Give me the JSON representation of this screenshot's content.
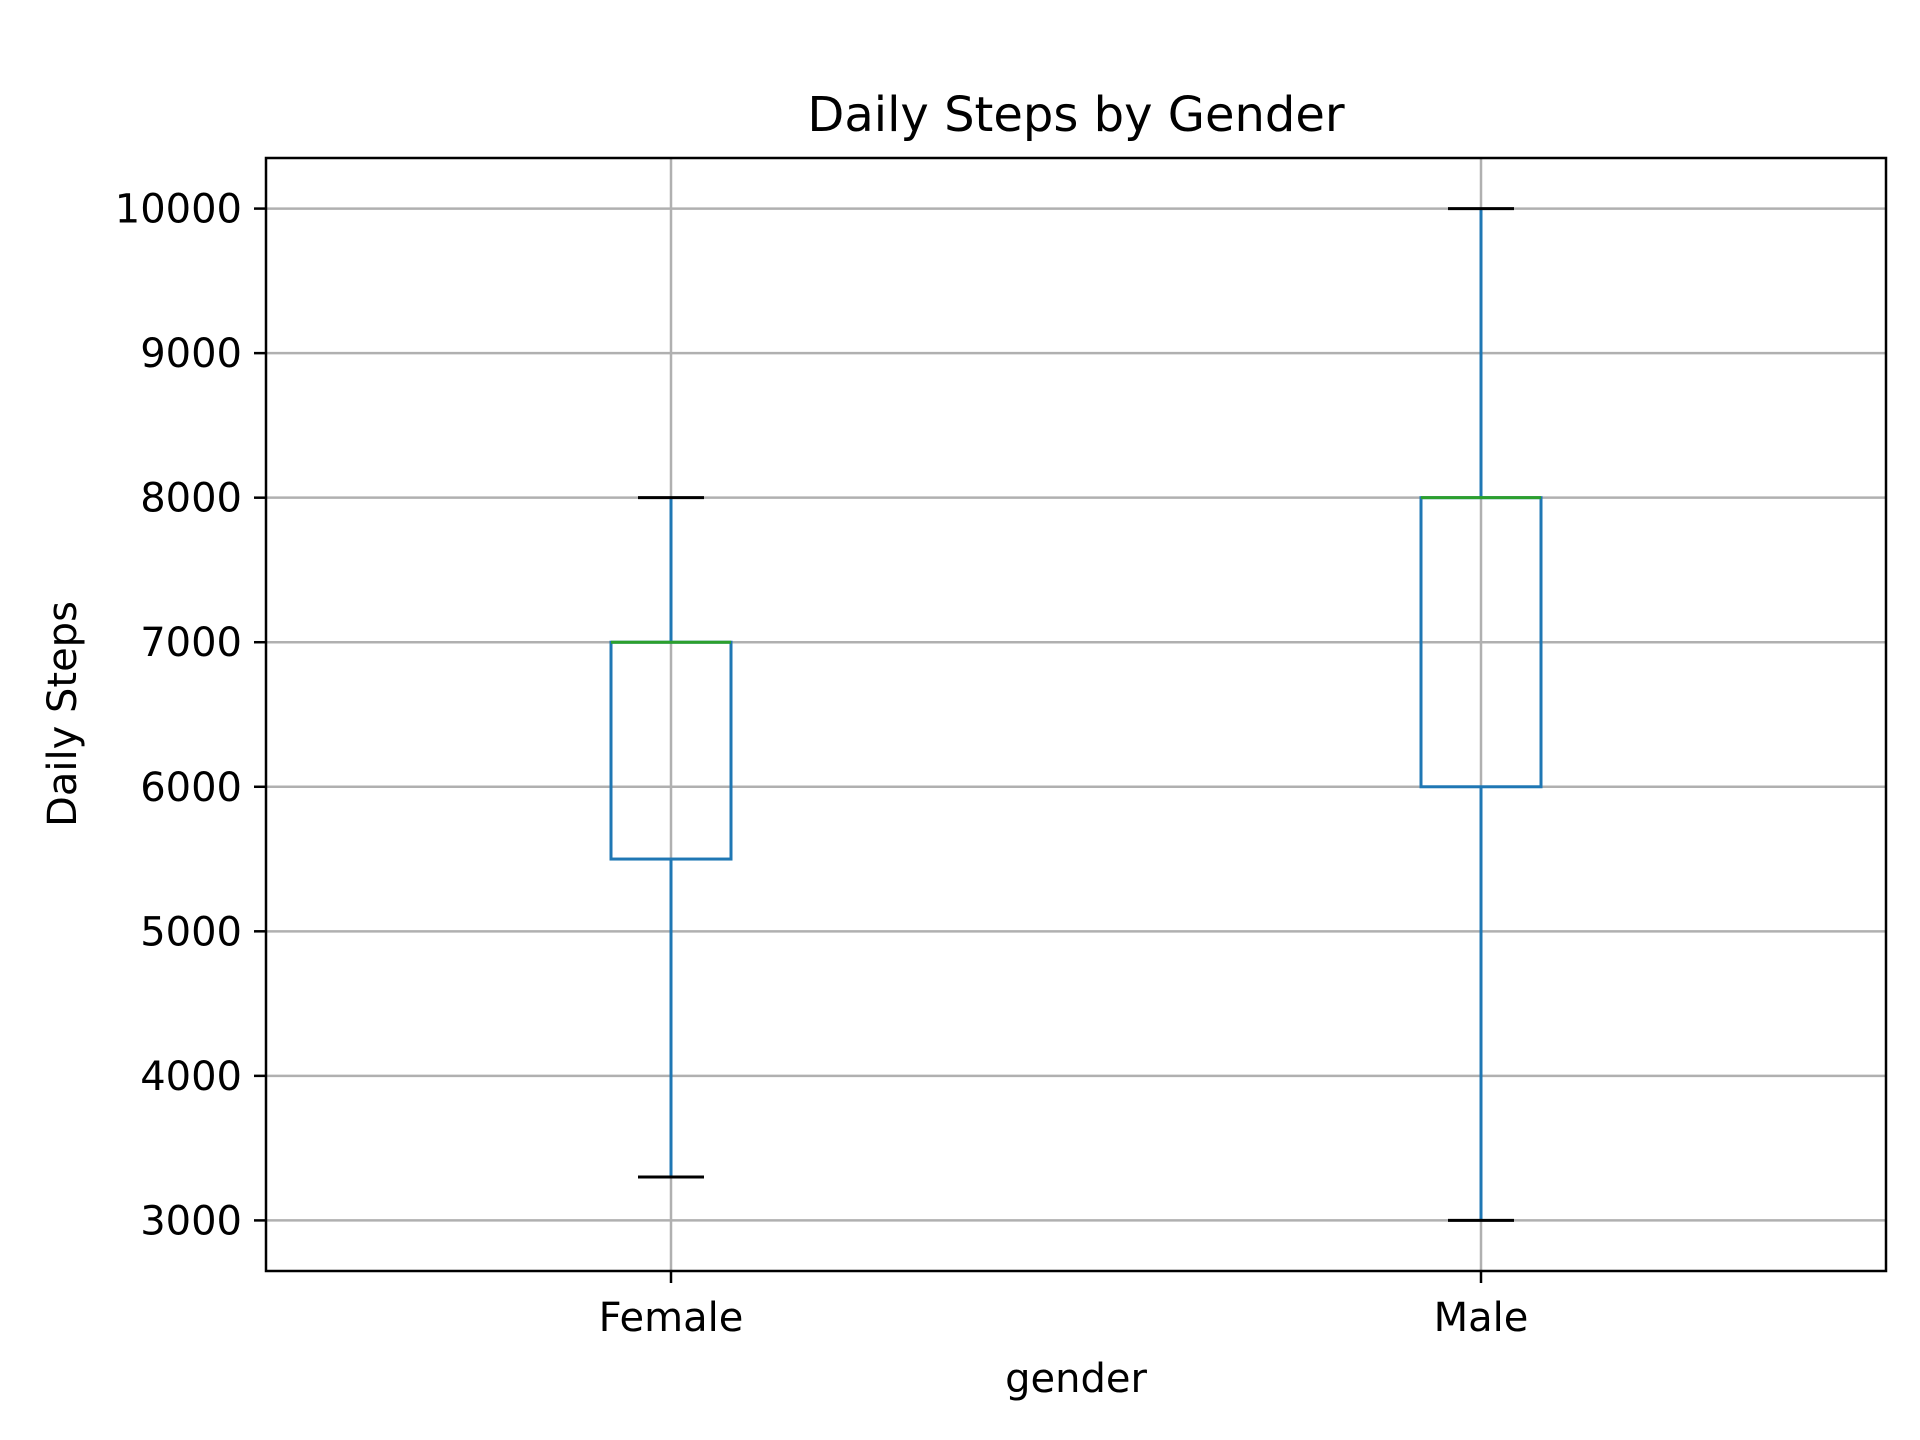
{
  "chart_data": {
    "type": "box",
    "title": "Daily Steps by Gender",
    "xlabel": "gender",
    "ylabel": "Daily Steps",
    "categories": [
      "Female",
      "Male"
    ],
    "boxes": [
      {
        "category": "Female",
        "whisker_low": 3300,
        "q1": 5500,
        "median": 7000,
        "q3": 7000,
        "whisker_high": 8000
      },
      {
        "category": "Male",
        "whisker_low": 3000,
        "q1": 6000,
        "median": 8000,
        "q3": 8000,
        "whisker_high": 10000
      }
    ],
    "yticks": [
      3000,
      4000,
      5000,
      6000,
      7000,
      8000,
      9000,
      10000
    ],
    "ylim": [
      2650,
      10350
    ],
    "grid": true,
    "colors": {
      "box": "#1f77b4",
      "median": "#2ca02c",
      "caps": "#000000",
      "grid": "#b0b0b0"
    }
  }
}
